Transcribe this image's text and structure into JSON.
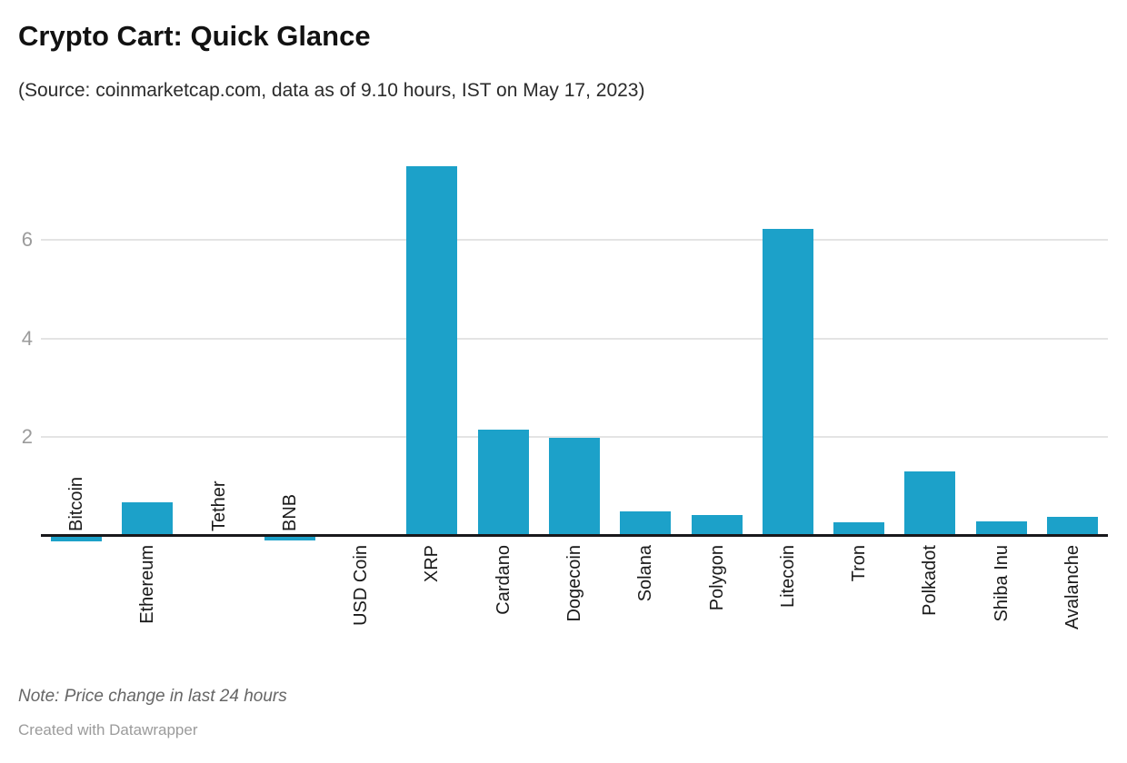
{
  "header": {
    "title": "Crypto Cart: Quick Glance",
    "subtitle": "(Source: coinmarketcap.com, data as of 9.10 hours, IST on May 17, 2023)"
  },
  "footer": {
    "note": "Note: Price change in last 24 hours",
    "attribution": "Created with Datawrapper"
  },
  "colors": {
    "bar": "#1CA1C9",
    "axis_line": "#18181b",
    "gridline": "#e4e4e4",
    "tick_label": "#9b9b9b",
    "category_label": "#1a1a1a"
  },
  "chart_data": {
    "type": "bar",
    "orientation": "vertical",
    "title": "Crypto Cart: Quick Glance",
    "subtitle": "(Source: coinmarketcap.com, data as of 9.10 hours, IST on May 17, 2023)",
    "note": "Note: Price change in last 24 hours",
    "value_meaning": "Price change in last 24 hours (%)",
    "categories": [
      "Bitcoin",
      "Ethereum",
      "Tether",
      "BNB",
      "USD Coin",
      "XRP",
      "Cardano",
      "Dogecoin",
      "Solana",
      "Polygon",
      "Litecoin",
      "Tron",
      "Polkadot",
      "Shiba Inu",
      "Avalanche"
    ],
    "values": [
      -0.13,
      0.67,
      0,
      -0.12,
      0,
      7.51,
      2.15,
      1.98,
      0.48,
      0.41,
      6.22,
      0.25,
      1.3,
      0.28,
      0.37
    ],
    "label_sides": [
      "above",
      "below",
      "above",
      "above",
      "below",
      "below",
      "below",
      "below",
      "below",
      "below",
      "below",
      "below",
      "below",
      "below",
      "below"
    ],
    "y_ticks": [
      2,
      4,
      6
    ],
    "ylim": [
      -0.2,
      7.85
    ],
    "grid": "horizontal",
    "legend": "none",
    "bar_color": "#1CA1C9"
  }
}
